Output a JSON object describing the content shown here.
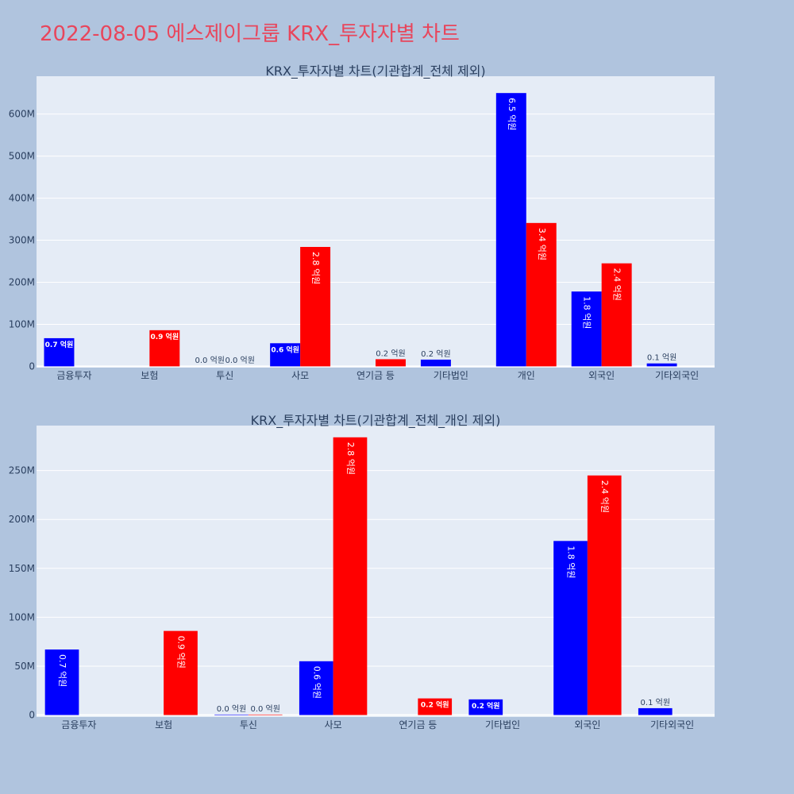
{
  "page_title": "2022-08-05 에스제이그룹 KRX_투자자별 차트",
  "colors": {
    "buy": "#0000ff",
    "sell": "#ff0000"
  },
  "chart_data": [
    {
      "type": "bar",
      "title": "KRX_투자자별 차트(기관합계_전체 제외)",
      "categories": [
        "금융투자",
        "보험",
        "투신",
        "사모",
        "연기금 등",
        "기타법인",
        "개인",
        "외국인",
        "기타외국인"
      ],
      "series": [
        {
          "values": [
            67000000,
            0,
            500000,
            55000000,
            0,
            16000000,
            650000000,
            178000000,
            7000000
          ],
          "labels": [
            "0.7 억원",
            "",
            "0.0 억원",
            "0.6 억원",
            "",
            "0.2 억원",
            "6.5 억원",
            "1.8 억원",
            "0.1 억원"
          ]
        },
        {
          "values": [
            0,
            86000000,
            500000,
            284000000,
            17000000,
            0,
            341000000,
            245000000,
            0
          ],
          "labels": [
            "",
            "0.9 억원",
            "0.0 억원",
            "2.8 억원",
            "0.2 억원",
            "",
            "3.4 억원",
            "2.4 억원",
            ""
          ]
        }
      ],
      "ylim": [
        -3000000,
        690000000
      ],
      "yticks": [
        0,
        100000000,
        200000000,
        300000000,
        400000000,
        500000000,
        600000000
      ],
      "ytick_labels": [
        "0",
        "100M",
        "200M",
        "300M",
        "400M",
        "500M",
        "600M"
      ]
    },
    {
      "type": "bar",
      "title": "KRX_투자자별 차트(기관합계_전체_개인 제외)",
      "categories": [
        "금융투자",
        "보험",
        "투신",
        "사모",
        "연기금 등",
        "기타법인",
        "외국인",
        "기타외국인"
      ],
      "series": [
        {
          "values": [
            67000000,
            0,
            500000,
            55000000,
            0,
            16000000,
            178000000,
            7000000
          ],
          "labels": [
            "0.7 억원",
            "",
            "0.0 억원",
            "0.6 억원",
            "",
            "0.2 억원",
            "1.8 억원",
            "0.1 억원"
          ]
        },
        {
          "values": [
            0,
            86000000,
            500000,
            284000000,
            17000000,
            0,
            245000000,
            0
          ],
          "labels": [
            "",
            "0.9 억원",
            "0.0 억원",
            "2.8 억원",
            "0.2 억원",
            "",
            "2.4 억원",
            ""
          ]
        }
      ],
      "ylim": [
        -2000000,
        296000000
      ],
      "yticks": [
        0,
        50000000,
        100000000,
        150000000,
        200000000,
        250000000
      ],
      "ytick_labels": [
        "0",
        "50M",
        "100M",
        "150M",
        "200M",
        "250M"
      ]
    }
  ]
}
